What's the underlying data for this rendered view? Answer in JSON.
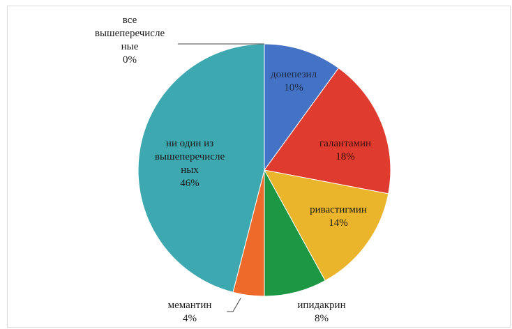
{
  "chart_data": {
    "type": "pie",
    "title": "",
    "start_angle_deg": 0,
    "direction": "clockwise",
    "legend": "none",
    "slices": [
      {
        "label": "донепезил",
        "value": 10,
        "pct_label": "10%",
        "color": "#4472C4",
        "text_color": "#1f2a44"
      },
      {
        "label": "галантамин",
        "value": 18,
        "pct_label": "18%",
        "color": "#E03B2F",
        "text_color": "#3a0e0a"
      },
      {
        "label": "ривастигмин",
        "value": 14,
        "pct_label": "14%",
        "color": "#EBB52B",
        "text_color": "#1a1a1a"
      },
      {
        "label": "ипидакрин",
        "value": 8,
        "pct_label": "8%",
        "color": "#1D9743",
        "text_color": "#1a1a1a"
      },
      {
        "label": "мемантин",
        "value": 4,
        "pct_label": "4%",
        "color": "#EE6A2A",
        "text_color": "#1a1a1a"
      },
      {
        "label": "ни один из вышеперечисле ных",
        "lines": [
          "ни один из",
          "вышеперечисле",
          "ных"
        ],
        "value": 46,
        "pct_label": "46%",
        "color": "#3EA8B0",
        "text_color": "#1a1a1a"
      },
      {
        "label": "все вышеперечисле ные",
        "lines": [
          "все",
          "вышеперечисле",
          "ные"
        ],
        "value": 0,
        "pct_label": "0%",
        "color": "#A5A5A5",
        "text_color": "#1a1a1a"
      }
    ]
  }
}
